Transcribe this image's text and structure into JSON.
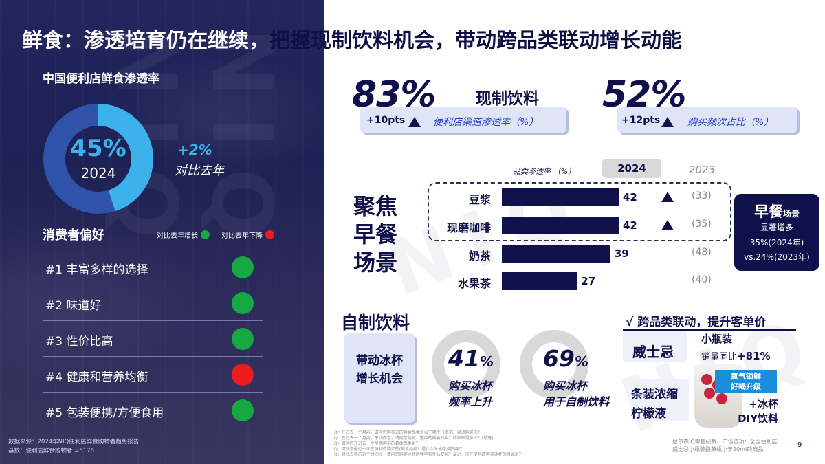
{
  "title": "鲜食：渗透培育仍在继续，把握现制饮料机会，带动跨品类联动增长动能",
  "title_split": [
    "鲜食：渗透培育仍在继续，",
    "把握现制饮料机会，带动跨品类联动增长动能"
  ],
  "left": {
    "heading": "中国便利店鲜食渗透率",
    "donut": {
      "value": 45,
      "pct_text": "45%",
      "year": "2024",
      "accent": "#3bb3ea",
      "track": "#2f53a8"
    },
    "yoy": {
      "value": "+2%",
      "label": "对比去年"
    },
    "pref_heading": "消费者偏好",
    "legend": [
      {
        "label": "对比去年增长",
        "color": "#16a843"
      },
      {
        "label": "对比去年下降",
        "color": "#ee1c1c"
      }
    ],
    "prefs": [
      {
        "label": "#1 丰富多样的选择",
        "color": "#16a843"
      },
      {
        "label": "#2 味道好",
        "color": "#16a843"
      },
      {
        "label": "#3 性价比高",
        "color": "#16a843"
      },
      {
        "label": "#4 健康和营养均衡",
        "color": "#ee1c1c"
      },
      {
        "label": "#5 包装便携/方便食用",
        "color": "#16a843"
      }
    ],
    "source": [
      "数据来源：2024年NIQ便利店鲜食购物者趋势报告",
      "基数：便利店鲜食购物者 =5176"
    ]
  },
  "kpis": [
    {
      "value": "83%",
      "delta": "+10pts",
      "label": "便利店渠道渗透率（%）"
    },
    {
      "value": "52%",
      "delta": "+12pts",
      "label": "购买频次占比（%）"
    }
  ],
  "drink_label": "现制饮料",
  "focus_label": [
    "聚焦",
    "早餐",
    "场景"
  ],
  "chart_data": {
    "type": "bar",
    "title": "品类渗透率 （%）",
    "series_label_current": "2024",
    "series_label_prev": "2023",
    "categories": [
      "豆浆",
      "现磨咖啡",
      "奶茶",
      "水果茶"
    ],
    "values": [
      42,
      42,
      39,
      27
    ],
    "prev_values": [
      "(33)",
      "(35)",
      "(48)",
      "(40)"
    ],
    "up": [
      true,
      true,
      false,
      false
    ],
    "xlim": [
      0,
      50
    ]
  },
  "breakfast": {
    "title": "早餐",
    "suffix": "场景",
    "lines": [
      "显著增多",
      "35%(2024年)",
      "vs.24%(2023年)"
    ]
  },
  "self_made": {
    "heading": "自制饮料",
    "box": [
      "带动冰杯",
      "增长机会"
    ],
    "rings": [
      {
        "value": 41,
        "pct": "41",
        "sign": "%",
        "lines": [
          "购买冰杯",
          "频率上升"
        ]
      },
      {
        "value": 69,
        "pct": "69",
        "sign": "%",
        "lines": [
          "购买冰杯",
          "用于自制饮料"
        ]
      }
    ]
  },
  "cross": {
    "heading": "√ 跨品类联动，提升客单价",
    "whisky": "威士忌",
    "small_bottle": "小瓶装",
    "sales_prefix": "销量同比",
    "sales_value": "+81%",
    "lemon": [
      "条装浓缩",
      "柠檬液"
    ],
    "tag": [
      "氮气锁鲜",
      "好喝升级"
    ],
    "ice": [
      "+冰杯",
      "DIY饮料"
    ]
  },
  "questions": [
    "Q：在过去一个月内，请问您购买过的鲜食品类是以下哪个（多选）渠道购买的？",
    "Q：在过去一个月内，平均而言，请问您购买（选中的鲜食品类）的频率是多少？(单选)",
    "Q：请问您在过去一个星期购买的具体品类是？",
    "Q：请问您最近一次在便利店购买的(鲜食品类）是什么时候吃/喝的呢？",
    "Q：对比去年的这个时间段，请问您购买冰杯的频率有什么变化？最近一次在便利店购买冰杯的原因是？"
  ],
  "footnote": [
    "尼尔森IQ零售研数，市场选项：全国便利店",
    "威士忌小瓶装指单瓶小于20ml的商品"
  ],
  "page": "9"
}
